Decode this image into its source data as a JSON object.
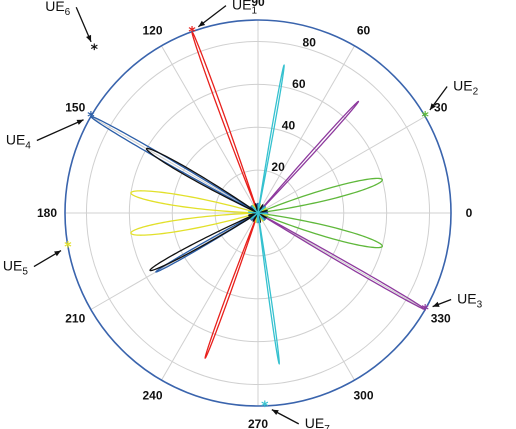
{
  "chart_data": {
    "type": "polar",
    "title": "",
    "grid": true,
    "angle_unit": "degrees",
    "angle_ticks": [
      0,
      30,
      60,
      90,
      120,
      150,
      180,
      210,
      240,
      270,
      300,
      330
    ],
    "angle_tick_labels": [
      "0",
      "30",
      "60",
      "90",
      "120",
      "150",
      "180",
      "210",
      "240",
      "270",
      "300",
      "330"
    ],
    "radial_ticks": [
      20,
      40,
      60,
      80
    ],
    "radial_tick_labels": [
      "20",
      "40",
      "60",
      "80"
    ],
    "rlim": [
      0,
      90
    ],
    "colors": {
      "UE1": "#e8201c",
      "UE2": "#5fb83b",
      "UE3": "#8e3a9e",
      "UE4": "#2b5ea8",
      "UE5": "#e2e02a",
      "UE6": "#111111",
      "UE7": "#35c1cf",
      "outer_ring": "#3a64ad",
      "grid": "#d0d0d0"
    },
    "series": [
      {
        "label_main": "UE",
        "label_sub": "1",
        "user_angle": 110,
        "user_r": 90,
        "lobes": [
          {
            "angle": 110,
            "r": 90,
            "width": 1.5
          },
          {
            "angle": 250,
            "r": 72,
            "width": 1.5
          }
        ]
      },
      {
        "label_main": "UE",
        "label_sub": "2",
        "user_angle": 30,
        "user_r": 90,
        "lobes": [
          {
            "angle": 15,
            "r": 60,
            "width": 7
          },
          {
            "angle": 345,
            "r": 60,
            "width": 7
          }
        ]
      },
      {
        "label_main": "UE",
        "label_sub": "3",
        "user_angle": 330,
        "user_r": 90,
        "lobes": [
          {
            "angle": 330,
            "r": 90,
            "width": 1.5
          },
          {
            "angle": 48,
            "r": 70,
            "width": 1.5
          }
        ]
      },
      {
        "label_main": "UE",
        "label_sub": "4",
        "user_angle": 150,
        "user_r": 90,
        "lobes": [
          {
            "angle": 150,
            "r": 90,
            "width": 2.2
          },
          {
            "angle": 210,
            "r": 55,
            "width": 2.2
          }
        ]
      },
      {
        "label_main": "UE",
        "label_sub": "5",
        "user_angle": 190,
        "user_r": 90,
        "lobes": [
          {
            "angle": 171,
            "r": 60,
            "width": 7
          },
          {
            "angle": 189,
            "r": 60,
            "width": 7
          }
        ]
      },
      {
        "label_main": "UE",
        "label_sub": "6",
        "user_angle": 135,
        "user_r": 108,
        "lobes": [
          {
            "angle": 150,
            "r": 60,
            "width": 4.5
          },
          {
            "angle": 208,
            "r": 57,
            "width": 4
          }
        ]
      },
      {
        "label_main": "UE",
        "label_sub": "7",
        "user_angle": 272,
        "user_r": 90,
        "lobes": [
          {
            "angle": 80,
            "r": 70,
            "width": 1.2
          },
          {
            "angle": 278,
            "r": 71,
            "width": 1.2
          }
        ]
      }
    ],
    "marker": "*"
  }
}
